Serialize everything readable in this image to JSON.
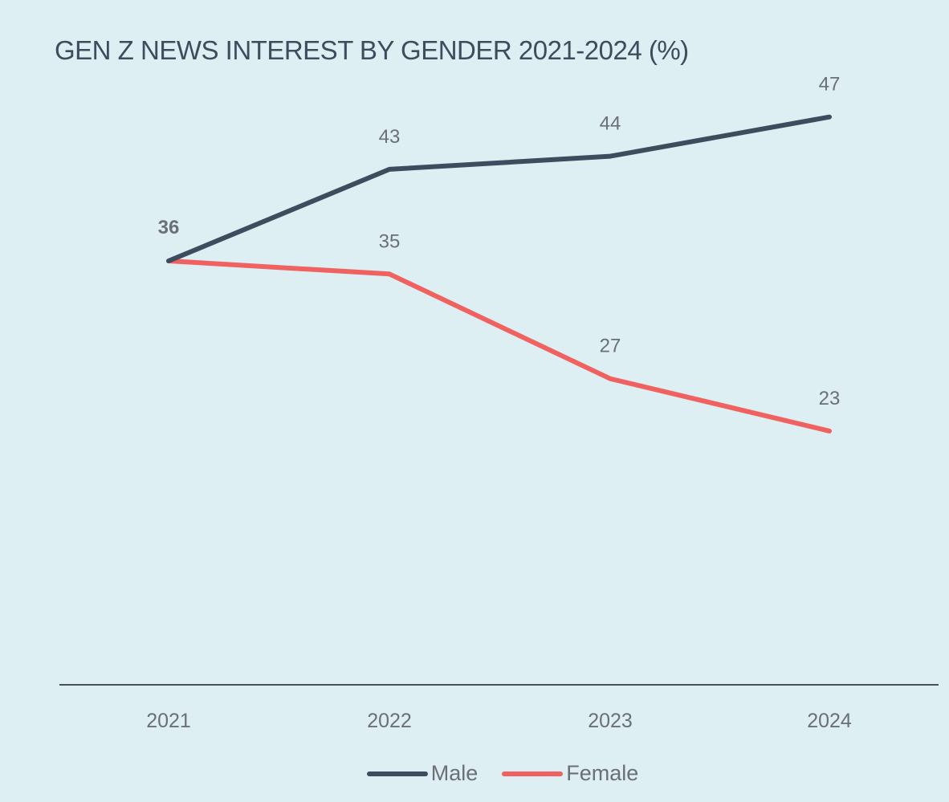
{
  "chart_data": {
    "type": "line",
    "title": "GEN Z NEWS INTEREST BY GENDER 2021-2024 (%)",
    "xlabel": "",
    "ylabel": "",
    "categories": [
      "2021",
      "2022",
      "2023",
      "2024"
    ],
    "series": [
      {
        "name": "Male",
        "color": "#3f4c5e",
        "values": [
          36,
          43,
          44,
          47
        ]
      },
      {
        "name": "Female",
        "color": "#f06260",
        "values": [
          36,
          35,
          27,
          23
        ]
      }
    ],
    "data_labels": {
      "male": [
        "36",
        "43",
        "44",
        "47"
      ],
      "female": [
        "",
        "35",
        "27",
        "23"
      ]
    },
    "ylim": [
      0,
      50
    ],
    "grid": false,
    "legend_position": "bottom-center",
    "colors": {
      "background": "#ddeff3",
      "axis": "#4a4f57",
      "label_text": "#6b6f76"
    }
  }
}
